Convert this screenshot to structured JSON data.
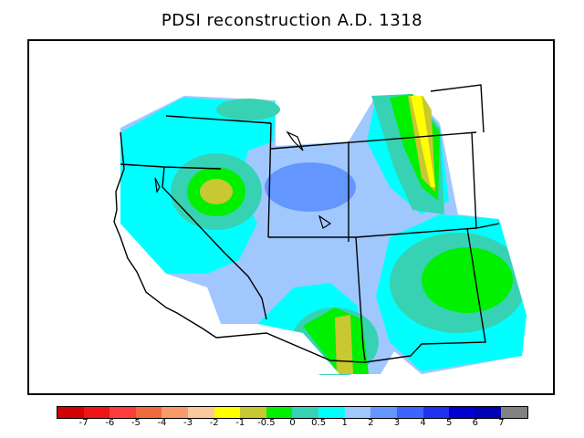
{
  "title": "PDSI reconstruction A.D. 1318",
  "legend": {
    "colors": [
      "#d20000",
      "#f01414",
      "#ff3c3c",
      "#f06a3c",
      "#f99a6a",
      "#fcc99c",
      "#ffff00",
      "#c8c832",
      "#00f000",
      "#37d2b4",
      "#00ffff",
      "#a0c8ff",
      "#6496ff",
      "#3c64ff",
      "#1e32f0",
      "#0000d2",
      "#0000b4",
      "#828282"
    ],
    "tick_labels": [
      "-7",
      "-6",
      "-5",
      "-4",
      "-3",
      "-2",
      "-1",
      "-0.5",
      "0",
      "0.5",
      "1",
      "2",
      "3",
      "4",
      "5",
      "6",
      "7"
    ]
  },
  "map": {
    "region": "Western United States",
    "field_colors": {
      "wet_light": "#a0c8ff",
      "wet_medium": "#6496ff",
      "near_normal": "#00ffff",
      "slightly_wet": "#37d2b4",
      "zero": "#00f000",
      "mild_dry": "#c8c832",
      "dry": "#ffff00"
    }
  }
}
